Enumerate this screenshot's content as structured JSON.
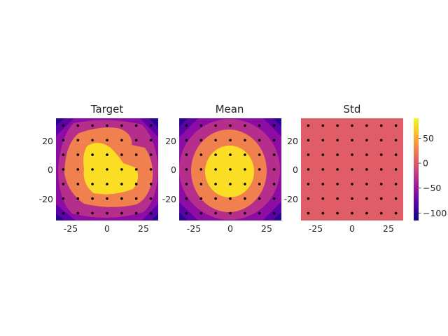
{
  "chart_data": [
    {
      "type": "heatmap",
      "title": "Target",
      "x_ticks": [
        -25,
        0,
        25
      ],
      "y_ticks": [
        20,
        0,
        -20
      ],
      "xlim": [
        -35,
        35
      ],
      "ylim": [
        -35,
        35
      ],
      "grid_points": [
        -30,
        -20,
        -10,
        0,
        10,
        20,
        30
      ],
      "grid": false,
      "contour_levels": [
        {
          "min": -120,
          "max": -100,
          "color": "#240691"
        },
        {
          "min": -100,
          "max": -75,
          "color": "#5c01a6"
        },
        {
          "min": -75,
          "max": -50,
          "color": "#8d0ca4"
        },
        {
          "min": -50,
          "max": -25,
          "color": "#b62e8b"
        },
        {
          "min": -25,
          "max": 0,
          "color": "#d7566c"
        },
        {
          "min": 0,
          "max": 25,
          "color": "#f0804e"
        },
        {
          "min": 25,
          "max": 50,
          "color": "#fdb030"
        },
        {
          "min": 50,
          "max": 90,
          "color": "#fadd24"
        }
      ],
      "field": "target"
    },
    {
      "type": "heatmap",
      "title": "Mean",
      "x_ticks": [
        -25,
        0,
        25
      ],
      "y_ticks": [
        20,
        0,
        -20
      ],
      "xlim": [
        -35,
        35
      ],
      "ylim": [
        -35,
        35
      ],
      "grid_points": [
        -30,
        -20,
        -10,
        0,
        10,
        20,
        30
      ],
      "grid": false,
      "field": "mean"
    },
    {
      "type": "heatmap",
      "title": "Std",
      "x_ticks": [
        -25,
        0,
        25
      ],
      "y_ticks": [
        20,
        0,
        -20
      ],
      "xlim": [
        -35,
        35
      ],
      "ylim": [
        -35,
        35
      ],
      "grid_points": [
        -30,
        -20,
        -10,
        0,
        10,
        20,
        30
      ],
      "grid": false,
      "field": "std",
      "constant_color": "#e05c66"
    }
  ],
  "colorbar": {
    "ticks": [
      "50",
      "0",
      "−50",
      "−100"
    ],
    "tick_values": [
      50,
      0,
      -50,
      -100
    ],
    "range": [
      -115,
      90
    ],
    "colors": [
      "#0d0887",
      "#5c01a6",
      "#9c179e",
      "#cc4778",
      "#ed7953",
      "#fdb42f",
      "#f0f921"
    ]
  }
}
